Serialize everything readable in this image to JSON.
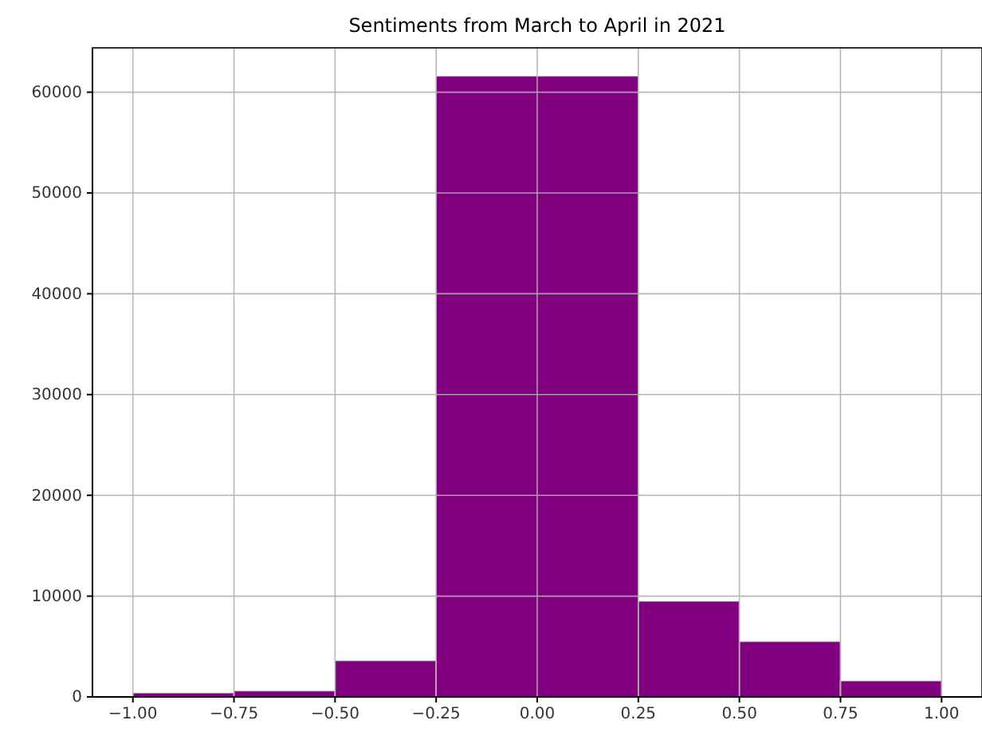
{
  "chart_data": {
    "type": "histogram",
    "title": "Sentiments from March to April in 2021",
    "bins": [
      -1,
      -0.75,
      -0.5,
      -0.25,
      0.25,
      0.5,
      0.75,
      1
    ],
    "values": [
      400,
      600,
      3600,
      61600,
      9500,
      5500,
      1600
    ],
    "color": "#800080",
    "xlim": [
      -1.1,
      1.1
    ],
    "xticks": [
      {
        "value": -1,
        "label": "−1.00"
      },
      {
        "value": -0.75,
        "label": "−0.75"
      },
      {
        "value": -0.5,
        "label": "−0.50"
      },
      {
        "value": -0.25,
        "label": "−0.25"
      },
      {
        "value": 0,
        "label": "0.00"
      },
      {
        "value": 0.25,
        "label": "0.25"
      },
      {
        "value": 0.5,
        "label": "0.50"
      },
      {
        "value": 0.75,
        "label": "0.75"
      },
      {
        "value": 1,
        "label": "1.00"
      }
    ],
    "ylim": [
      0,
      64400
    ],
    "yticks": [
      0,
      10000,
      20000,
      30000,
      40000,
      50000,
      60000
    ],
    "grid": true
  }
}
